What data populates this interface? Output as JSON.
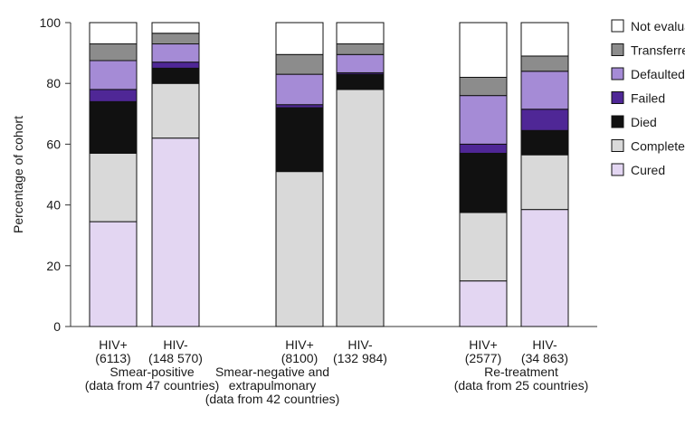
{
  "chart_data": {
    "type": "bar",
    "stacked": true,
    "ylabel": "Percentage of cohort",
    "ylim": [
      0,
      100
    ],
    "yticks": [
      0,
      20,
      40,
      60,
      80,
      100
    ],
    "grid": false,
    "legend_position": "right",
    "series": [
      {
        "name": "Cured",
        "color": "#e3d6f2"
      },
      {
        "name": "Completed",
        "color": "#d9d9d9"
      },
      {
        "name": "Died",
        "color": "#111111"
      },
      {
        "name": "Failed",
        "color": "#4f2796"
      },
      {
        "name": "Defaulted",
        "color": "#a58bd6"
      },
      {
        "name": "Transferred",
        "color": "#8c8c8c"
      },
      {
        "name": "Not evaluated",
        "color": "#ffffff"
      }
    ],
    "legend_order": [
      "Not evaluated",
      "Transferred",
      "Defaulted",
      "Failed",
      "Died",
      "Completed",
      "Cured"
    ],
    "groups": [
      {
        "label_lines": [
          "Smear-positive",
          "(data from 47 countries)"
        ],
        "bars": [
          {
            "label": [
              "HIV+",
              "(6113)"
            ],
            "values": [
              34.5,
              22.5,
              17,
              4,
              9.5,
              5.5,
              7
            ]
          },
          {
            "label": [
              "HIV-",
              "(148 570)"
            ],
            "values": [
              62,
              18,
              5,
              2,
              6,
              3.5,
              3.5
            ]
          }
        ]
      },
      {
        "label_lines": [
          "Smear-negative and",
          "extrapulmonary",
          "(data from 42 countries)"
        ],
        "bars": [
          {
            "label": [
              "HIV+",
              "(8100)"
            ],
            "values": [
              0,
              51,
              21,
              1,
              10,
              6.5,
              10.5
            ]
          },
          {
            "label": [
              "HIV-",
              "(132 984)"
            ],
            "values": [
              0,
              78,
              5,
              0.5,
              6,
              3.5,
              7
            ]
          }
        ]
      },
      {
        "label_lines": [
          "Re-treatment",
          "(data from 25 countries)"
        ],
        "bars": [
          {
            "label": [
              "HIV+",
              "(2577)"
            ],
            "values": [
              15,
              22.5,
              19.5,
              3,
              16,
              6,
              18
            ]
          },
          {
            "label": [
              "HIV-",
              "(34 863)"
            ],
            "values": [
              38.5,
              18,
              8,
              7,
              12.5,
              5,
              11
            ]
          }
        ]
      }
    ]
  }
}
